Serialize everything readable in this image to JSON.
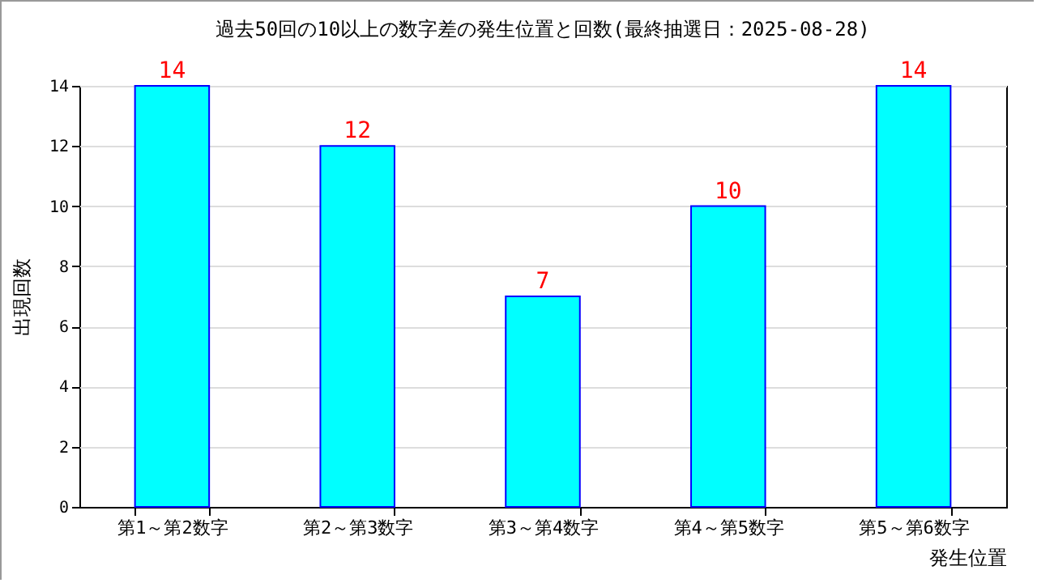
{
  "chart_data": {
    "type": "bar",
    "title": "過去50回の10以上の数字差の発生位置と回数(最終抽選日：2025-08-28)",
    "categories": [
      "第1～第2数字",
      "第2～第3数字",
      "第3～第4数字",
      "第4～第5数字",
      "第5～第6数字"
    ],
    "values": [
      14,
      12,
      7,
      10,
      14
    ],
    "color": "#00ffff",
    "xlabel": "発生位置",
    "ylabel": "出現回数",
    "ylim": [
      0,
      14
    ],
    "yticks": [
      0,
      2,
      4,
      6,
      8,
      10,
      12,
      14
    ],
    "grid": "y",
    "data_labels": true
  }
}
